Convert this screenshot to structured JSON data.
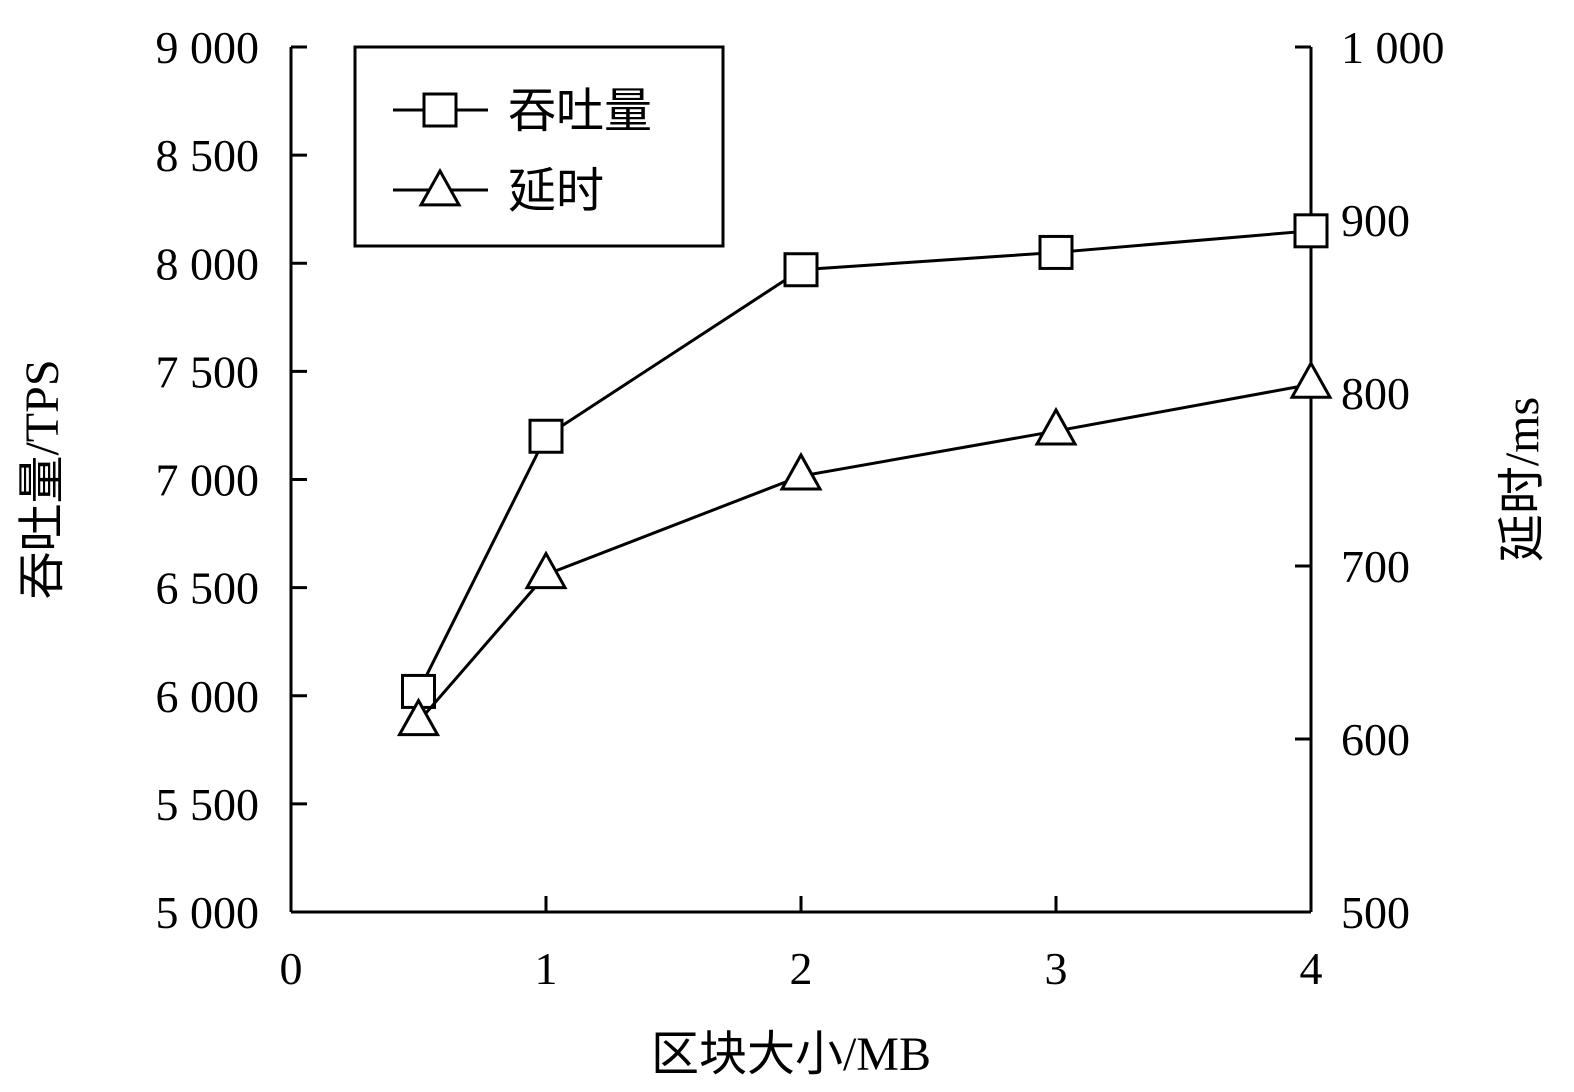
{
  "chart_data": {
    "type": "line",
    "x": [
      0.5,
      1,
      2,
      3,
      4
    ],
    "xlabel": "区块大小/MB",
    "xlim": [
      0,
      4
    ],
    "xticks": [
      0,
      1,
      2,
      3,
      4
    ],
    "xtick_labels": [
      "0",
      "1",
      "2",
      "3",
      "4"
    ],
    "ylabel_left": "吞吐量/TPS",
    "ylim_left": [
      5000,
      9000
    ],
    "yticks_left": [
      5000,
      5500,
      6000,
      6500,
      7000,
      7500,
      8000,
      8500,
      9000
    ],
    "ytick_labels_left": [
      "5 000",
      "5 500",
      "6 000",
      "6 500",
      "7 000",
      "7 500",
      "8 000",
      "8 500",
      "9 000"
    ],
    "ylabel_right": "延时/ms",
    "ylim_right": [
      500,
      1000
    ],
    "yticks_right": [
      500,
      600,
      700,
      800,
      900,
      1000
    ],
    "ytick_labels_right": [
      "500",
      "600",
      "700",
      "800",
      "900",
      "1 000"
    ],
    "series": [
      {
        "name": "吞吐量",
        "axis": "left",
        "marker": "square",
        "values": [
          6020,
          7200,
          7970,
          8050,
          8150
        ]
      },
      {
        "name": "延时",
        "axis": "right",
        "marker": "triangle",
        "values": [
          610,
          695,
          752,
          778,
          805
        ]
      }
    ],
    "legend_position": "top-left",
    "grid": false,
    "color": "#000000"
  }
}
